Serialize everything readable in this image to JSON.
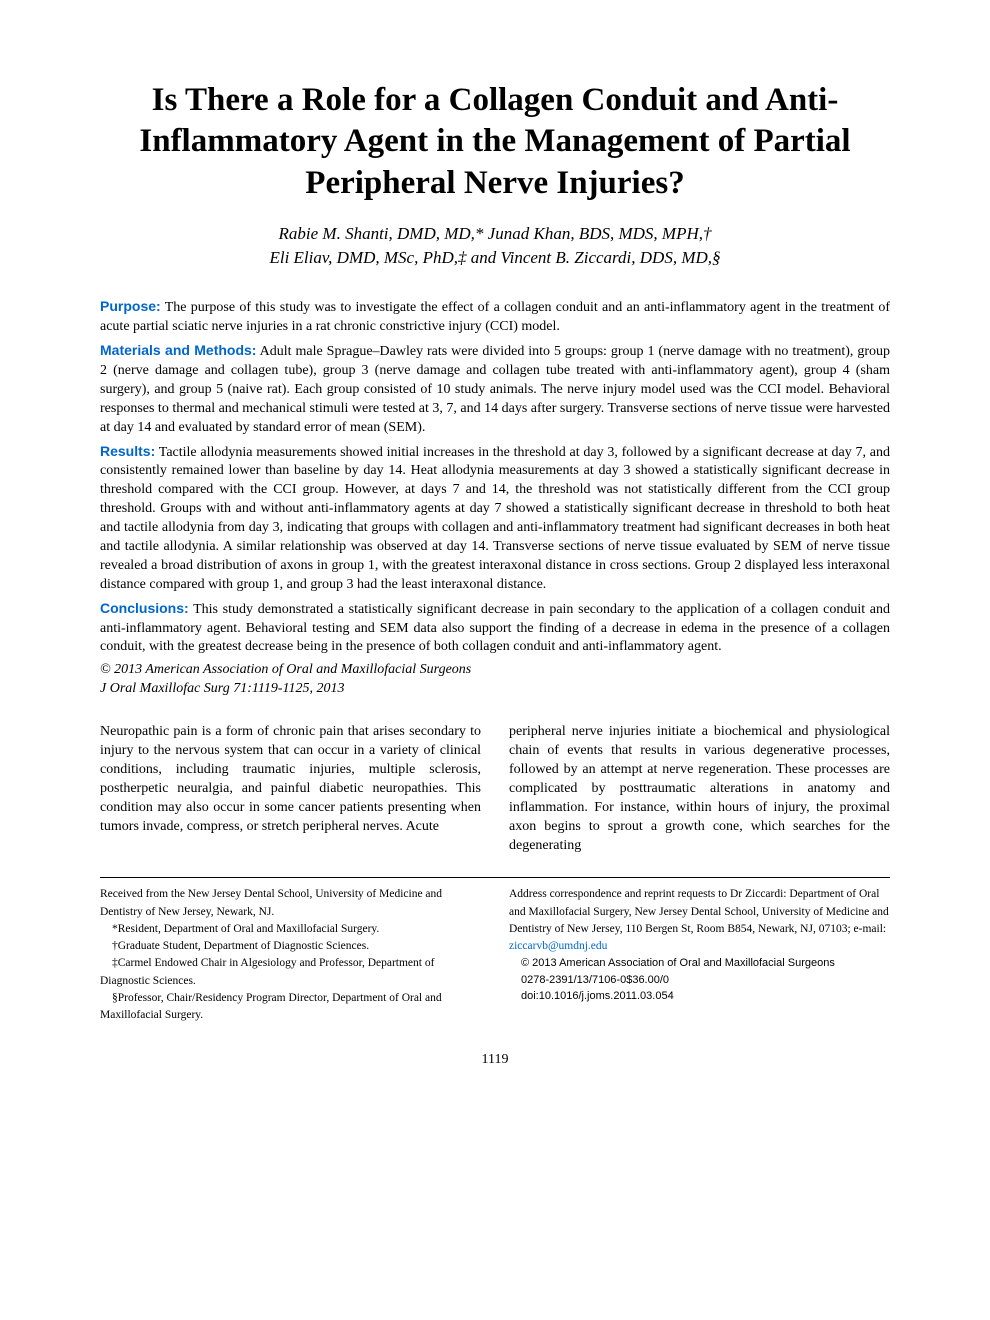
{
  "title": "Is There a Role for a Collagen Conduit and Anti-Inflammatory Agent in the Management of Partial Peripheral Nerve Injuries?",
  "authors_line1": "Rabie M. Shanti, DMD, MD,* Junad Khan, BDS, MDS, MPH,†",
  "authors_line2": "Eli Eliav, DMD, MSc, PhD,‡ and Vincent B. Ziccardi, DDS, MD,§",
  "abstract": {
    "purpose": {
      "label": "Purpose:",
      "text": "The purpose of this study was to investigate the effect of a collagen conduit and an anti-inflammatory agent in the treatment of acute partial sciatic nerve injuries in a rat chronic constrictive injury (CCI) model."
    },
    "materials": {
      "label": "Materials and Methods:",
      "text": "Adult male Sprague–Dawley rats were divided into 5 groups: group 1 (nerve damage with no treatment), group 2 (nerve damage and collagen tube), group 3 (nerve damage and collagen tube treated with anti-inflammatory agent), group 4 (sham surgery), and group 5 (naive rat). Each group consisted of 10 study animals. The nerve injury model used was the CCI model. Behavioral responses to thermal and mechanical stimuli were tested at 3, 7, and 14 days after surgery. Transverse sections of nerve tissue were harvested at day 14 and evaluated by standard error of mean (SEM)."
    },
    "results": {
      "label": "Results:",
      "text": "Tactile allodynia measurements showed initial increases in the threshold at day 3, followed by a significant decrease at day 7, and consistently remained lower than baseline by day 14. Heat allodynia measurements at day 3 showed a statistically significant decrease in threshold compared with the CCI group. However, at days 7 and 14, the threshold was not statistically different from the CCI group threshold. Groups with and without anti-inflammatory agents at day 7 showed a statistically significant decrease in threshold to both heat and tactile allodynia from day 3, indicating that groups with collagen and anti-inflammatory treatment had significant decreases in both heat and tactile allodynia. A similar relationship was observed at day 14. Transverse sections of nerve tissue evaluated by SEM of nerve tissue revealed a broad distribution of axons in group 1, with the greatest interaxonal distance in cross sections. Group 2 displayed less interaxonal distance compared with group 1, and group 3 had the least interaxonal distance."
    },
    "conclusions": {
      "label": "Conclusions:",
      "text": "This study demonstrated a statistically significant decrease in pain secondary to the application of a collagen conduit and anti-inflammatory agent. Behavioral testing and SEM data also support the finding of a decrease in edema in the presence of a collagen conduit, with the greatest decrease being in the presence of both collagen conduit and anti-inflammatory agent."
    },
    "copyright": "© 2013 American Association of Oral and Maxillofacial Surgeons",
    "citation": "J Oral Maxillofac Surg 71:1119-1125, 2013"
  },
  "body": {
    "left": "Neuropathic pain is a form of chronic pain that arises secondary to injury to the nervous system that can occur in a variety of clinical conditions, including traumatic injuries, multiple sclerosis, postherpetic neuralgia, and painful diabetic neuropathies. This condition may also occur in some cancer patients presenting when tumors invade, compress, or stretch peripheral nerves. Acute",
    "right": "peripheral nerve injuries initiate a biochemical and physiological chain of events that results in various degenerative processes, followed by an attempt at nerve regeneration. These processes are complicated by posttraumatic alterations in anatomy and inflammation. For instance, within hours of injury, the proximal axon begins to sprout a growth cone, which searches for the degenerating"
  },
  "footer": {
    "left": {
      "l1": "Received from the New Jersey Dental School, University of Medicine and Dentistry of New Jersey, Newark, NJ.",
      "l2": "*Resident, Department of Oral and Maxillofacial Surgery.",
      "l3": "†Graduate Student, Department of Diagnostic Sciences.",
      "l4": "‡Carmel Endowed Chair in Algesiology and Professor, Department of Diagnostic Sciences.",
      "l5": "§Professor, Chair/Residency Program Director, Department of Oral and Maxillofacial Surgery."
    },
    "right": {
      "r1_pre": "Address correspondence and reprint requests to Dr Ziccardi: Department of Oral and Maxillofacial Surgery, New Jersey Dental School, University of Medicine and Dentistry of New Jersey, 110 Bergen St, Room B854, Newark, NJ, 07103; e-mail: ",
      "r1_email": "ziccarvb@umdnj.edu",
      "r2": "© 2013 American Association of Oral and Maxillofacial Surgeons",
      "r3": "0278-2391/13/7106-0$36.00/0",
      "r4": "doi:10.1016/j.joms.2011.03.054"
    }
  },
  "page_number": "1119",
  "colors": {
    "section_label": "#0066cc",
    "link": "#0066cc",
    "text": "#000000",
    "background": "#ffffff"
  },
  "typography": {
    "title_fontsize": 33,
    "authors_fontsize": 17,
    "abstract_fontsize": 14,
    "body_fontsize": 14,
    "footer_fontsize": 11.5
  }
}
